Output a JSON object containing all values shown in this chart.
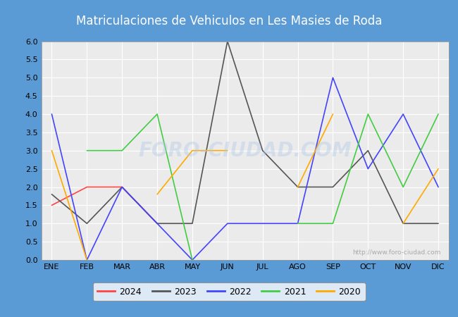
{
  "title": "Matriculaciones de Vehiculos en Les Masies de Roda",
  "title_bg_color": "#5b9bd5",
  "title_text_color": "#ffffff",
  "months": [
    "ENE",
    "FEB",
    "MAR",
    "ABR",
    "MAY",
    "JUN",
    "JUL",
    "AGO",
    "SEP",
    "OCT",
    "NOV",
    "DIC"
  ],
  "ylim": [
    0.0,
    6.0
  ],
  "yticks": [
    0.0,
    0.5,
    1.0,
    1.5,
    2.0,
    2.5,
    3.0,
    3.5,
    4.0,
    4.5,
    5.0,
    5.5,
    6.0
  ],
  "series": {
    "2024": {
      "color": "#ff4444",
      "values": [
        1.5,
        2.0,
        2.0,
        1.0,
        null,
        null,
        null,
        null,
        null,
        null,
        null,
        null
      ]
    },
    "2023": {
      "color": "#555555",
      "values": [
        1.8,
        1.0,
        2.0,
        1.0,
        1.0,
        6.0,
        3.0,
        2.0,
        2.0,
        3.0,
        1.0,
        1.0
      ]
    },
    "2022": {
      "color": "#4444ff",
      "values": [
        4.0,
        0.0,
        2.0,
        1.0,
        0.0,
        1.0,
        1.0,
        1.0,
        5.0,
        2.5,
        4.0,
        2.0
      ]
    },
    "2021": {
      "color": "#44cc44",
      "values": [
        null,
        3.0,
        3.0,
        4.0,
        0.0,
        null,
        null,
        1.0,
        1.0,
        4.0,
        2.0,
        4.0
      ]
    },
    "2020": {
      "color": "#ffaa00",
      "values": [
        3.0,
        0.0,
        null,
        1.8,
        3.0,
        3.0,
        null,
        2.0,
        4.0,
        null,
        1.0,
        2.5
      ]
    }
  },
  "legend_order": [
    "2024",
    "2023",
    "2022",
    "2021",
    "2020"
  ],
  "watermark": "http://www.foro-ciudad.com",
  "plot_bg_color": "#ebebeb",
  "grid_color": "#ffffff",
  "fig_bg_color": "#5b9bd5"
}
